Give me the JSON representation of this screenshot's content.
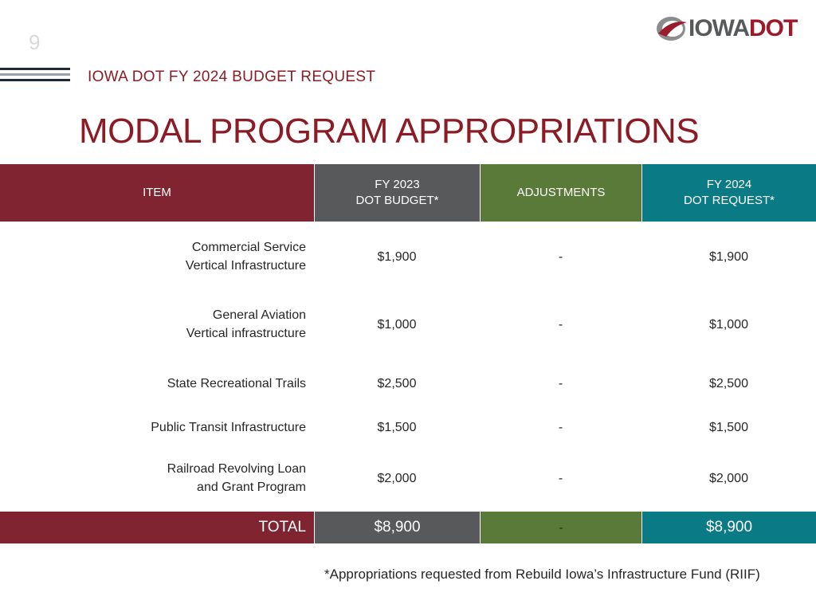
{
  "slide": {
    "page_number": "9",
    "subtitle": "IOWA DOT FY 2024 BUDGET REQUEST",
    "title": "MODAL PROGRAM APPROPRIATIONS",
    "footnote": "*Appropriations requested from Rebuild Iowa’s Infrastructure Fund (RIIF)"
  },
  "logo": {
    "part1": "IOWA",
    "part2": "DOT",
    "icon": "swoosh-icon",
    "colors": {
      "grey": "#58595b",
      "red": "#9b1b2c"
    }
  },
  "table": {
    "headers": {
      "item": "ITEM",
      "budget_line1": "FY 2023",
      "budget_line2": "DOT BUDGET*",
      "adjustments": "ADJUSTMENTS",
      "request_line1": "FY 2024",
      "request_line2": "DOT REQUEST*"
    },
    "rows": [
      {
        "item_line1": "Commercial Service",
        "item_line2": "Vertical Infrastructure",
        "budget": "$1,900",
        "adjustments": "-",
        "request": "$1,900"
      },
      {
        "item_line1": "General Aviation",
        "item_line2": "Vertical infrastructure",
        "budget": "$1,000",
        "adjustments": "-",
        "request": "$1,000"
      },
      {
        "item_line1": "State Recreational Trails",
        "item_line2": "",
        "budget": "$2,500",
        "adjustments": "-",
        "request": "$2,500"
      },
      {
        "item_line1": "Public Transit Infrastructure",
        "item_line2": "",
        "budget": "$1,500",
        "adjustments": "-",
        "request": "$1,500"
      },
      {
        "item_line1": "Railroad Revolving Loan",
        "item_line2": "and Grant Program",
        "budget": "$2,000",
        "adjustments": "-",
        "request": "$2,000"
      }
    ],
    "total": {
      "label": "TOTAL",
      "budget": "$8,900",
      "adjustments": "-",
      "request": "$8,900"
    },
    "colors": {
      "maroon": "#7f2430",
      "grey": "#58595b",
      "green": "#5a7a3a",
      "teal": "#0a7a84"
    }
  }
}
